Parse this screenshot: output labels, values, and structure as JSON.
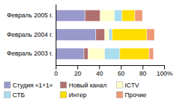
{
  "chart_data": {
    "type": "bar",
    "orientation": "horizontal",
    "stacked": true,
    "categories": [
      "Февраль 2005 г.",
      "Февраль 2004 г.",
      "Февраль 2003 г."
    ],
    "series": [
      {
        "name": "Студия «1+1»",
        "color": "#9999cc",
        "values": [
          27,
          37,
          26
        ]
      },
      {
        "name": "Новый канал",
        "color": "#b07070",
        "values": [
          14,
          8,
          4
        ]
      },
      {
        "name": "ICTV",
        "color": "#ffffcc",
        "values": [
          13,
          4,
          15
        ]
      },
      {
        "name": "СТБ",
        "color": "#aaddee",
        "values": [
          7,
          3,
          14
        ]
      },
      {
        "name": "Интер",
        "color": "#ffdd00",
        "values": [
          12,
          32,
          27
        ]
      },
      {
        "name": "Прочие",
        "color": "#ee9977",
        "values": [
          7,
          7,
          4
        ]
      }
    ],
    "xlim": [
      0,
      100
    ],
    "xticks": [
      0,
      20,
      40,
      60,
      80,
      {
        "value": 100,
        "label": "100%"
      }
    ],
    "legend": "bottom"
  }
}
